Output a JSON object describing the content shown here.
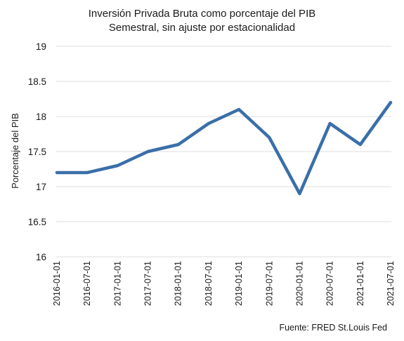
{
  "chart_data": {
    "type": "line",
    "title": "Inversión Privada Bruta como porcentaje del PIB",
    "subtitle": "Semestral, sin ajuste por estacionalidad",
    "ylabel": "Porcentaje del PIB",
    "xlabel": "",
    "source": "Fuente: FRED St.Louis Fed",
    "categories": [
      "2016-01-01",
      "2016-07-01",
      "2017-01-01",
      "2017-07-01",
      "2018-01-01",
      "2018-07-01",
      "2019-01-01",
      "2019-07-01",
      "2020-01-01",
      "2020-07-01",
      "2021-01-01",
      "2021-07-01"
    ],
    "series": [
      {
        "values": [
          17.2,
          17.2,
          17.3,
          17.5,
          17.6,
          17.9,
          18.1,
          17.7,
          16.9,
          17.9,
          17.6,
          18.2
        ],
        "color": "#3a6fa8"
      }
    ],
    "ylim": [
      16,
      19
    ],
    "yticks": [
      16,
      16.5,
      17,
      17.5,
      18,
      18.5,
      19
    ],
    "ytick_labels": [
      "16",
      "16.5",
      "17",
      "17.5",
      "18",
      "18.5",
      "19"
    ],
    "grid": true,
    "legend": "none"
  }
}
